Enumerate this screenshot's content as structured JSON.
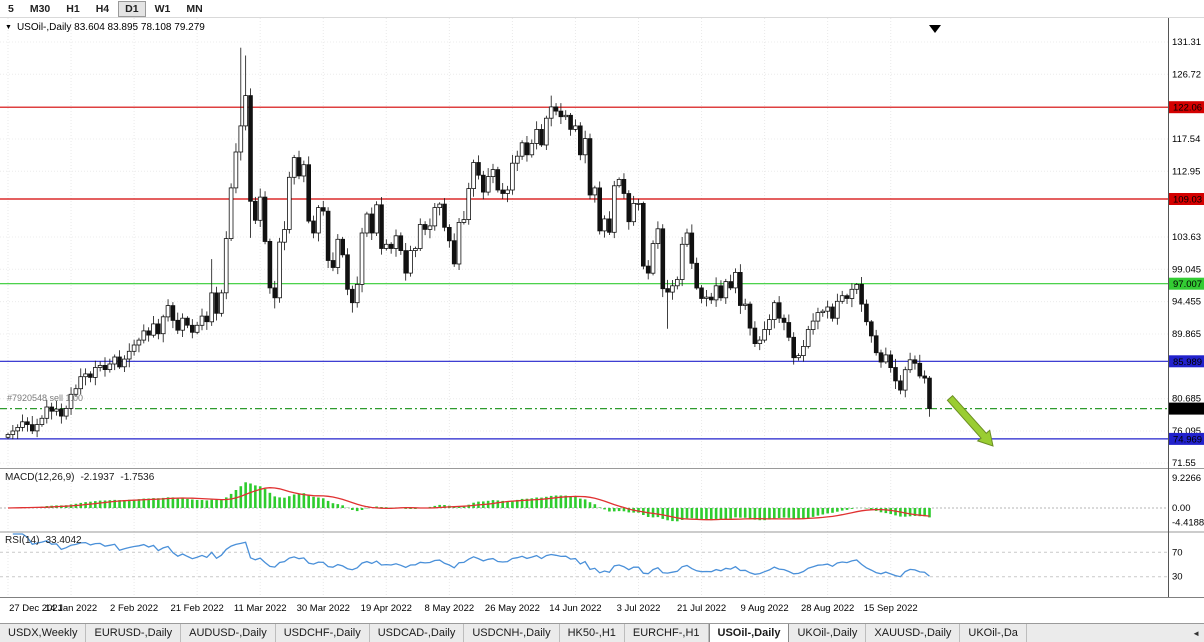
{
  "toolbar": {
    "periods": [
      "5",
      "M30",
      "H1",
      "H4",
      "D1",
      "W1",
      "MN"
    ],
    "active": "D1"
  },
  "chart_data": {
    "type": "candlestick",
    "header": "USOil-,Daily 83.604 83.895 78.108 79.279",
    "symbol": "USOil-,Daily",
    "last_ohlc": {
      "open": "83.604",
      "high": "83.895",
      "low": "78.108",
      "close": "79.279"
    },
    "x_labels": [
      "27 Dec 2021",
      "14 Jan 2022",
      "2 Feb 2022",
      "21 Feb 2022",
      "11 Mar 2022",
      "30 Mar 2022",
      "19 Apr 2022",
      "8 May 2022",
      "26 May 2022",
      "14 Jun 2022",
      "3 Jul 2022",
      "21 Jul 2022",
      "9 Aug 2022",
      "28 Aug 2022",
      "15 Sep 2022"
    ],
    "candles_per_label": 13,
    "first_open": 75.2,
    "closes": [
      75.6,
      76.1,
      76.6,
      77.4,
      77.0,
      76.1,
      77.0,
      77.9,
      79.5,
      78.9,
      79.2,
      78.2,
      79.3,
      81.3,
      82.1,
      83.8,
      84.2,
      83.7,
      85.1,
      85.4,
      84.8,
      85.6,
      86.6,
      85.2,
      86.3,
      87.4,
      88.3,
      89.0,
      90.3,
      89.7,
      91.3,
      89.9,
      92.3,
      93.9,
      91.8,
      90.4,
      92.1,
      91.1,
      90.1,
      91.1,
      92.4,
      91.6,
      95.7,
      92.8,
      95.7,
      103.4,
      110.6,
      115.7,
      119.4,
      123.7,
      108.7,
      106.0,
      109.3,
      103.0,
      96.4,
      95.0,
      102.9,
      104.7,
      112.1,
      114.9,
      112.3,
      113.9,
      105.9,
      104.2,
      107.8,
      107.3,
      100.3,
      99.3,
      103.3,
      101.1,
      96.2,
      94.3,
      96.9,
      104.2,
      106.9,
      104.2,
      108.2,
      102.0,
      102.6,
      102.0,
      103.8,
      101.7,
      98.5,
      101.7,
      102.0,
      105.4,
      104.7,
      105.2,
      107.8,
      108.3,
      105.0,
      103.1,
      99.8,
      105.7,
      106.1,
      110.5,
      114.2,
      112.4,
      110.0,
      112.2,
      113.2,
      110.3,
      109.8,
      110.3,
      114.1,
      115.1,
      117.0,
      115.3,
      116.9,
      118.9,
      116.7,
      120.5,
      122.1,
      121.5,
      120.7,
      120.9,
      118.9,
      119.4,
      115.3,
      117.6,
      109.6,
      110.6,
      104.5,
      106.2,
      104.3,
      110.9,
      111.8,
      109.8,
      105.8,
      108.4,
      108.4,
      99.5,
      98.5,
      102.7,
      104.8,
      96.3,
      95.8,
      96.7,
      97.6,
      102.6,
      104.2,
      99.9,
      96.4,
      94.9,
      95.1,
      94.7,
      96.7,
      95.0,
      97.3,
      96.4,
      98.6,
      93.9,
      94.1,
      90.7,
      88.5,
      89.0,
      90.5,
      91.9,
      94.3,
      92.1,
      91.5,
      89.4,
      86.5,
      86.8,
      88.1,
      90.5,
      91.7,
      92.9,
      93.1,
      93.7,
      92.1,
      94.5,
      95.3,
      94.9,
      96.2,
      96.9,
      94.1,
      91.6,
      89.6,
      87.2,
      85.9,
      86.9,
      85.1,
      83.2,
      81.9,
      84.8,
      86.2,
      85.7,
      83.9,
      83.604,
      79.279
    ],
    "wick_overrides": {
      "42": {
        "h": 100.5
      },
      "48": {
        "h": 130.5
      },
      "49": {
        "h": 129.4
      },
      "50": {
        "l": 103.5
      },
      "55": {
        "l": 93.5
      },
      "71": {
        "l": 92.9
      },
      "112": {
        "h": 123.7
      },
      "136": {
        "l": 90.6
      },
      "175": {
        "h": 97.1
      },
      "190": {
        "h": 83.895,
        "l": 78.108
      }
    },
    "y_axis": {
      "labels": [
        "131.31",
        "126.72",
        "117.54",
        "112.95",
        "103.63",
        "99.045",
        "94.455",
        "89.865",
        "80.685",
        "76.095",
        "71.55"
      ]
    },
    "horizontal_lines": [
      {
        "price": 122.06,
        "badge": "122.06",
        "line": "#d40000",
        "dash": "",
        "badge_bg": "#d40000",
        "badge_fg": "#ffffff"
      },
      {
        "price": 109.03,
        "badge": "109.03",
        "line": "#d40000",
        "dash": "",
        "badge_bg": "#d40000",
        "badge_fg": "#ffffff"
      },
      {
        "price": 97.007,
        "badge": "97.007",
        "line": "#33cc33",
        "dash": "",
        "badge_bg": "#33cc33",
        "badge_fg": "#000000"
      },
      {
        "price": 85.989,
        "badge": "85.989",
        "line": "#2222cc",
        "dash": "",
        "badge_bg": "#2222cc",
        "badge_fg": "#ffffff"
      },
      {
        "price": 79.279,
        "badge": "79.279",
        "line": "#2e9b2e",
        "dash": "7,3,2,3",
        "badge_bg": "#000000",
        "badge_fg": "#ffffff"
      },
      {
        "price": 74.969,
        "badge": "74.969",
        "line": "#2222cc",
        "dash": "",
        "badge_bg": "#2222cc",
        "badge_fg": "#ffffff"
      }
    ],
    "indicators": {
      "macd": {
        "label": "MACD(12,26,9)",
        "value1": "-2.1937",
        "value2": "-1.7536",
        "axis_labels": [
          "9.2266",
          "0.00",
          "-4.4188"
        ],
        "histogram_color": "#2ecc2e",
        "signal_color": "#e03131"
      },
      "rsi": {
        "label": "RSI(14)",
        "value": "33.4042",
        "levels": [
          "70",
          "30"
        ],
        "line_color": "#4a90d9"
      }
    },
    "annotations": {
      "order_label": "#7920548 sell 1.00",
      "arrow_direction": "down-right",
      "arrow_color": "#9acd32"
    }
  },
  "tabs": {
    "items": [
      {
        "label": "USDX,Weekly",
        "active": false
      },
      {
        "label": "EURUSD-,Daily",
        "active": false
      },
      {
        "label": "AUDUSD-,Daily",
        "active": false
      },
      {
        "label": "USDCHF-,Daily",
        "active": false
      },
      {
        "label": "USDCAD-,Daily",
        "active": false
      },
      {
        "label": "USDCNH-,Daily",
        "active": false
      },
      {
        "label": "HK50-,H1",
        "active": false
      },
      {
        "label": "EURCHF-,H1",
        "active": false
      },
      {
        "label": "USOil-,Daily",
        "active": true
      },
      {
        "label": "UKOil-,Daily",
        "active": false
      },
      {
        "label": "XAUUSD-,Daily",
        "active": false
      },
      {
        "label": "UKOil-,Da",
        "active": false
      }
    ],
    "scroll_icon": "◄"
  }
}
